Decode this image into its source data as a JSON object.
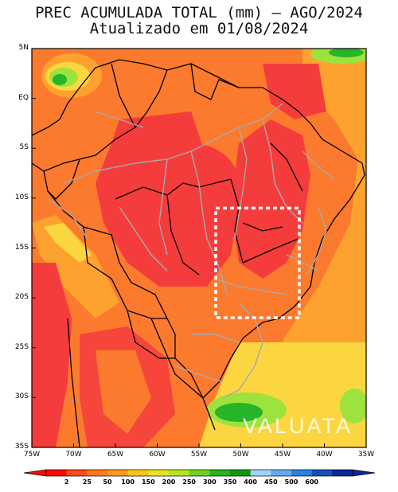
{
  "title": {
    "line1": "PREC ACUMULADA TOTAL (mm) – AGO/2024",
    "line2": "Atualizado em 01/08/2024"
  },
  "map": {
    "latitude_labels": [
      "5N",
      "EQ",
      "5S",
      "10S",
      "15S",
      "20S",
      "25S",
      "30S",
      "35S"
    ],
    "longitude_labels": [
      "75W",
      "70W",
      "65W",
      "60W",
      "55W",
      "50W",
      "45W",
      "40W",
      "35W"
    ],
    "lat_range": [
      -35,
      5
    ],
    "lon_range": [
      -75,
      -35
    ],
    "highlight_box": {
      "lon": [
        -53,
        -43
      ],
      "lat": [
        -22,
        -11
      ]
    },
    "watermark": "VALUATA"
  },
  "colorbar": {
    "labels": [
      "2",
      "25",
      "50",
      "100",
      "150",
      "200",
      "250",
      "300",
      "350",
      "400",
      "450",
      "500",
      "600"
    ],
    "colors": [
      "#ff0a00",
      "#ff4a1a",
      "#ff7a1e",
      "#ff9a1e",
      "#ffc31e",
      "#e6e61e",
      "#b4e61e",
      "#6ed21e",
      "#28b41e",
      "#119611",
      "#a0d2ff",
      "#64aaf0",
      "#2882dc",
      "#1450b4",
      "#0a2896"
    ]
  },
  "colors": {
    "very_dry": "#f53c3c",
    "dry": "#fc7a2e",
    "light": "#fda22e",
    "moderate": "#fcd640",
    "wet": "#9ee23e",
    "very_wet": "#28b428",
    "border_country": "#000000",
    "border_state": "#a8a8a8",
    "box": "#ffffff"
  }
}
